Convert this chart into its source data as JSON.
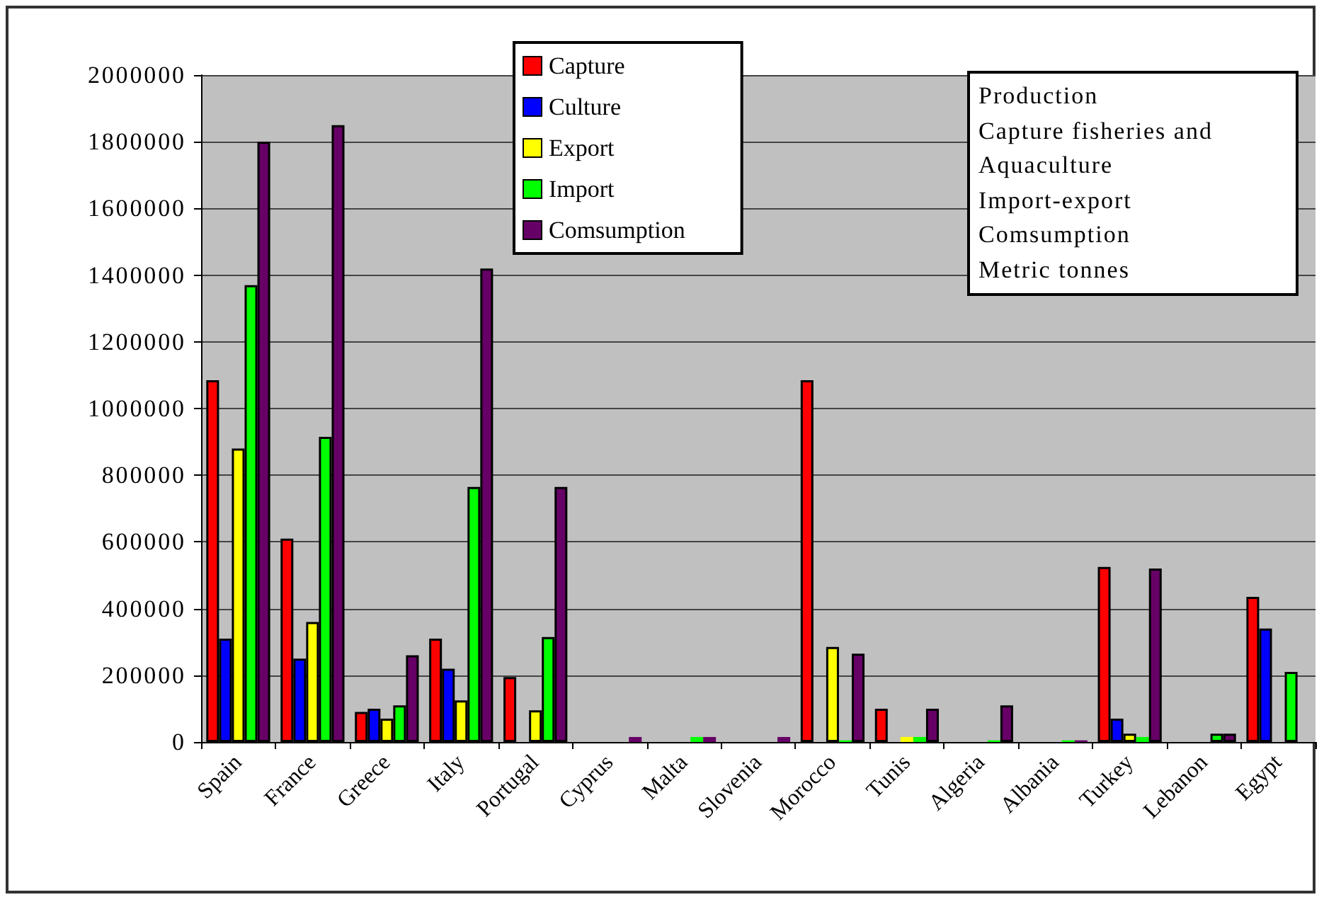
{
  "chart_data": {
    "type": "bar",
    "categories": [
      "Spain",
      "France",
      "Greece",
      "Italy",
      "Portugal",
      "Cyprus",
      "Malta",
      "Slovenia",
      "Morocco",
      "Tunis",
      "Algeria",
      "Albania",
      "Turkey",
      "Lebanon",
      "Egypt"
    ],
    "series": [
      {
        "name": "Capture",
        "color": "#ff0000",
        "values": [
          1085000,
          610000,
          90000,
          310000,
          195000,
          null,
          null,
          null,
          1085000,
          100000,
          null,
          null,
          525000,
          null,
          435000
        ]
      },
      {
        "name": "Culture",
        "color": "#0000ff",
        "values": [
          310000,
          250000,
          100000,
          220000,
          null,
          null,
          null,
          null,
          null,
          null,
          null,
          null,
          70000,
          null,
          340000
        ]
      },
      {
        "name": "Export",
        "color": "#ffff00",
        "values": [
          880000,
          360000,
          70000,
          125000,
          95000,
          null,
          null,
          null,
          285000,
          15000,
          null,
          null,
          25000,
          null,
          null
        ]
      },
      {
        "name": "Import",
        "color": "#00ff00",
        "values": [
          1370000,
          915000,
          110000,
          765000,
          315000,
          null,
          15000,
          null,
          5000,
          15000,
          5000,
          5000,
          15000,
          25000,
          210000
        ]
      },
      {
        "name": "Comsumption",
        "color": "#660066",
        "values": [
          1800000,
          1850000,
          260000,
          1420000,
          765000,
          15000,
          15000,
          15000,
          265000,
          100000,
          110000,
          5000,
          520000,
          25000,
          null
        ]
      }
    ],
    "ylim": [
      0,
      2000000
    ],
    "yticks": [
      0,
      200000,
      400000,
      600000,
      800000,
      1000000,
      1200000,
      1400000,
      1600000,
      1800000,
      2000000
    ],
    "grid": "y",
    "legend": "top",
    "annotations": [
      "Production",
      "Capture fisheries and",
      "Aquaculture",
      "Import-export",
      "Comsumption",
      "Metric tonnes"
    ]
  }
}
